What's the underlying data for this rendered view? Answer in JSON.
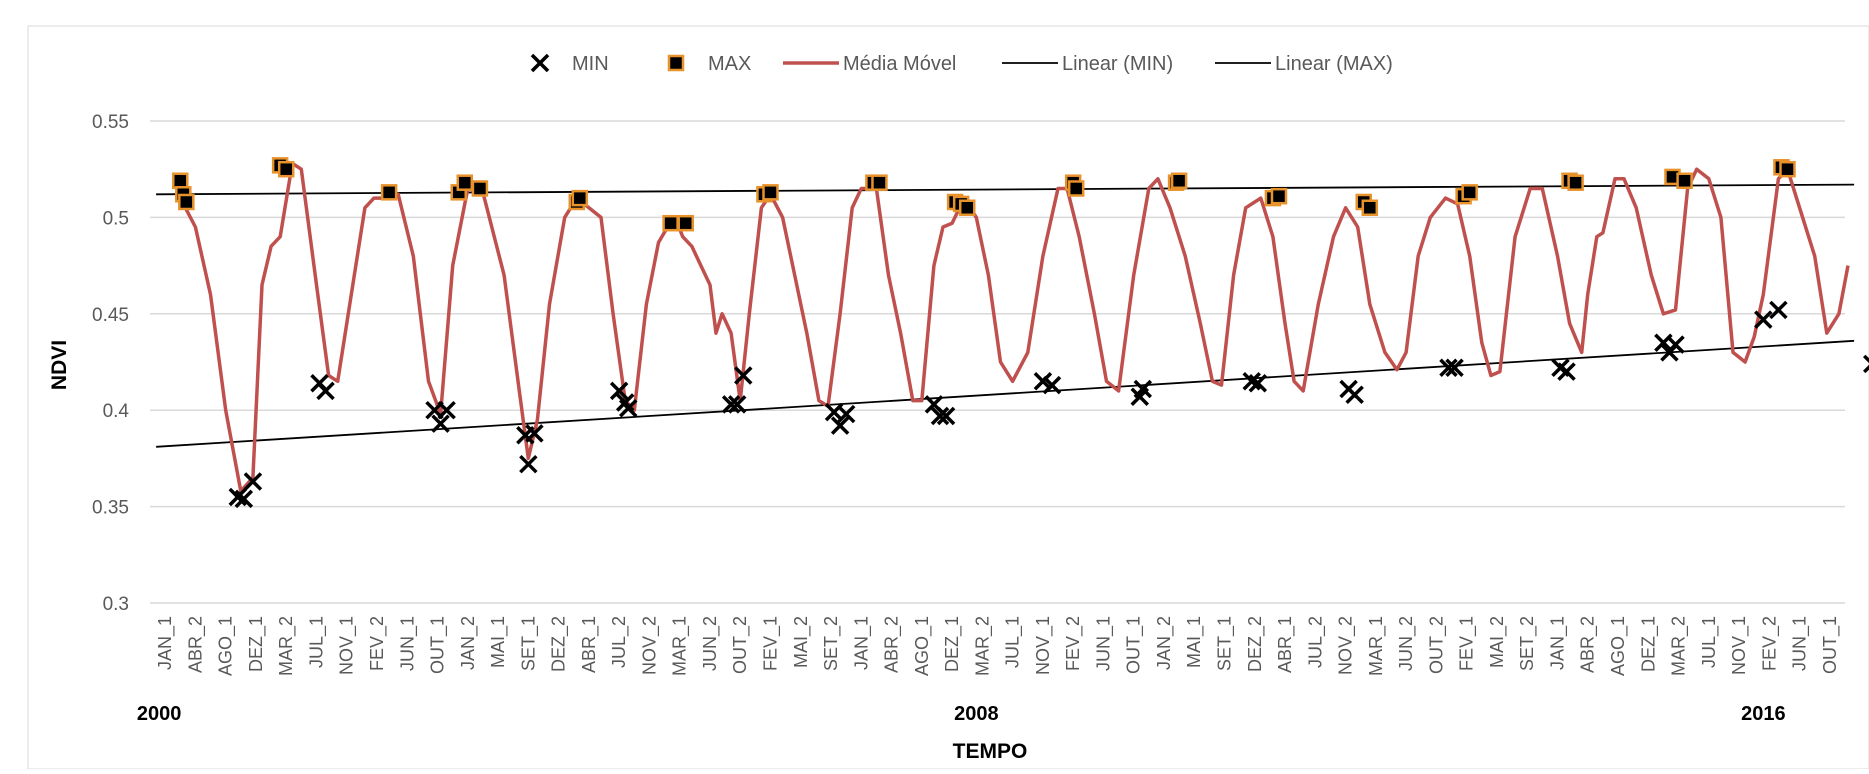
{
  "chart_data": {
    "type": "line",
    "title": "",
    "xlabel": "TEMPO",
    "ylabel": "NDVI",
    "ylim": [
      0.3,
      0.55
    ],
    "yticks": [
      "0.3",
      "0.35",
      "0.4",
      "0.45",
      "0.5",
      "0.55"
    ],
    "grid": true,
    "legend_placement": "top-center",
    "categories": [
      "JAN_1",
      "ABR_2",
      "AGO_1",
      "DEZ_1",
      "MAR_2",
      "JUL_1",
      "NOV_1",
      "FEV_2",
      "JUN_1",
      "OUT_1",
      "JAN_2",
      "MAI_1",
      "SET_1",
      "DEZ_2",
      "ABR_1",
      "JUL_2",
      "NOV_2",
      "MAR_1",
      "JUN_2",
      "OUT_2",
      "FEV_1",
      "MAI_2",
      "SET_2",
      "JAN_1",
      "ABR_2",
      "AGO_1",
      "DEZ_1",
      "MAR_2",
      "JUL_1",
      "NOV_1",
      "FEV_2",
      "JUN_1",
      "OUT_1",
      "JAN_2",
      "MAI_1",
      "SET_1",
      "DEZ_2",
      "ABR_1",
      "JUL_2",
      "NOV_2",
      "MAR_1",
      "JUN_2",
      "OUT_2",
      "FEV_1",
      "MAI_2",
      "SET_2",
      "JAN_1",
      "ABR_2",
      "AGO_1",
      "DEZ_1",
      "MAR_2",
      "JUL_1",
      "NOV_1",
      "FEV_2",
      "JUN_1",
      "OUT_1"
    ],
    "year_labels": [
      {
        "text": "2000",
        "category_index": 0
      },
      {
        "text": "2008",
        "category_index": 27
      },
      {
        "text": "2016",
        "category_index": 53
      }
    ],
    "series": [
      {
        "name": "MIN",
        "kind": "marker-x",
        "color": "#000000",
        "points": [
          [
            2.4,
            0.355
          ],
          [
            2.6,
            0.354
          ],
          [
            2.9,
            0.363
          ],
          [
            5.1,
            0.414
          ],
          [
            5.3,
            0.41
          ],
          [
            8.9,
            0.4
          ],
          [
            9.1,
            0.393
          ],
          [
            9.3,
            0.4
          ],
          [
            11.9,
            0.387
          ],
          [
            12.0,
            0.372
          ],
          [
            12.2,
            0.388
          ],
          [
            15.0,
            0.41
          ],
          [
            15.2,
            0.404
          ],
          [
            15.3,
            0.401
          ],
          [
            18.7,
            0.403
          ],
          [
            18.9,
            0.403
          ],
          [
            19.1,
            0.418
          ],
          [
            22.1,
            0.399
          ],
          [
            22.3,
            0.392
          ],
          [
            22.5,
            0.398
          ],
          [
            25.4,
            0.403
          ],
          [
            25.6,
            0.397
          ],
          [
            25.8,
            0.397
          ],
          [
            29.0,
            0.415
          ],
          [
            29.3,
            0.413
          ],
          [
            32.2,
            0.407
          ],
          [
            32.3,
            0.411
          ],
          [
            35.9,
            0.415
          ],
          [
            36.1,
            0.414
          ],
          [
            39.1,
            0.411
          ],
          [
            39.3,
            0.408
          ],
          [
            42.4,
            0.422
          ],
          [
            42.6,
            0.422
          ],
          [
            46.1,
            0.422
          ],
          [
            46.3,
            0.42
          ],
          [
            49.5,
            0.435
          ],
          [
            49.7,
            0.43
          ],
          [
            49.9,
            0.434
          ],
          [
            52.8,
            0.447
          ],
          [
            53.3,
            0.452
          ],
          [
            56.4,
            0.424
          ],
          [
            56.6,
            0.42
          ]
        ]
      },
      {
        "name": "MAX",
        "kind": "marker-square",
        "color": "#000000",
        "edge": "#e8922c",
        "points": [
          [
            0.5,
            0.519
          ],
          [
            0.6,
            0.512
          ],
          [
            0.7,
            0.508
          ],
          [
            3.8,
            0.527
          ],
          [
            4.0,
            0.525
          ],
          [
            7.4,
            0.513
          ],
          [
            9.7,
            0.513
          ],
          [
            9.9,
            0.518
          ],
          [
            10.4,
            0.515
          ],
          [
            13.6,
            0.508
          ],
          [
            13.7,
            0.51
          ],
          [
            16.7,
            0.497
          ],
          [
            17.2,
            0.497
          ],
          [
            19.8,
            0.512
          ],
          [
            20.0,
            0.513
          ],
          [
            23.4,
            0.518
          ],
          [
            23.6,
            0.518
          ],
          [
            26.1,
            0.508
          ],
          [
            26.3,
            0.507
          ],
          [
            26.5,
            0.505
          ],
          [
            30.0,
            0.518
          ],
          [
            30.1,
            0.515
          ],
          [
            33.4,
            0.518
          ],
          [
            33.5,
            0.519
          ],
          [
            36.6,
            0.51
          ],
          [
            36.8,
            0.511
          ],
          [
            39.6,
            0.508
          ],
          [
            39.8,
            0.505
          ],
          [
            42.9,
            0.511
          ],
          [
            43.1,
            0.513
          ],
          [
            46.4,
            0.519
          ],
          [
            46.6,
            0.518
          ],
          [
            49.8,
            0.521
          ],
          [
            50.2,
            0.519
          ],
          [
            53.4,
            0.526
          ],
          [
            53.6,
            0.525
          ]
        ]
      },
      {
        "name": "Média Móvel",
        "kind": "line",
        "color": "#c0504d",
        "points": [
          [
            0.5,
            0.51
          ],
          [
            1.0,
            0.495
          ],
          [
            1.5,
            0.46
          ],
          [
            2.0,
            0.4
          ],
          [
            2.5,
            0.358
          ],
          [
            2.9,
            0.365
          ],
          [
            3.2,
            0.465
          ],
          [
            3.5,
            0.485
          ],
          [
            3.8,
            0.49
          ],
          [
            4.2,
            0.528
          ],
          [
            4.5,
            0.525
          ],
          [
            5.0,
            0.465
          ],
          [
            5.4,
            0.418
          ],
          [
            5.7,
            0.415
          ],
          [
            6.2,
            0.465
          ],
          [
            6.6,
            0.505
          ],
          [
            6.9,
            0.51
          ],
          [
            7.3,
            0.51
          ],
          [
            7.7,
            0.512
          ],
          [
            8.2,
            0.48
          ],
          [
            8.7,
            0.415
          ],
          [
            9.1,
            0.398
          ],
          [
            9.5,
            0.475
          ],
          [
            10.0,
            0.515
          ],
          [
            10.5,
            0.513
          ],
          [
            11.2,
            0.47
          ],
          [
            11.7,
            0.41
          ],
          [
            12.0,
            0.375
          ],
          [
            12.3,
            0.395
          ],
          [
            12.7,
            0.455
          ],
          [
            13.2,
            0.5
          ],
          [
            13.6,
            0.51
          ],
          [
            14.0,
            0.505
          ],
          [
            14.4,
            0.5
          ],
          [
            14.8,
            0.45
          ],
          [
            15.2,
            0.405
          ],
          [
            15.5,
            0.4
          ],
          [
            15.9,
            0.455
          ],
          [
            16.3,
            0.487
          ],
          [
            16.6,
            0.495
          ],
          [
            16.9,
            0.498
          ],
          [
            17.1,
            0.49
          ],
          [
            17.4,
            0.485
          ],
          [
            17.7,
            0.475
          ],
          [
            18.0,
            0.465
          ],
          [
            18.2,
            0.44
          ],
          [
            18.4,
            0.45
          ],
          [
            18.7,
            0.44
          ],
          [
            19.0,
            0.405
          ],
          [
            19.3,
            0.45
          ],
          [
            19.7,
            0.505
          ],
          [
            20.0,
            0.512
          ],
          [
            20.4,
            0.5
          ],
          [
            20.8,
            0.47
          ],
          [
            21.2,
            0.44
          ],
          [
            21.6,
            0.405
          ],
          [
            21.9,
            0.402
          ],
          [
            22.3,
            0.45
          ],
          [
            22.7,
            0.505
          ],
          [
            23.0,
            0.515
          ],
          [
            23.5,
            0.515
          ],
          [
            23.9,
            0.47
          ],
          [
            24.3,
            0.44
          ],
          [
            24.7,
            0.405
          ],
          [
            25.0,
            0.405
          ],
          [
            25.4,
            0.475
          ],
          [
            25.7,
            0.495
          ],
          [
            26.0,
            0.497
          ],
          [
            26.4,
            0.51
          ],
          [
            26.8,
            0.5
          ],
          [
            27.2,
            0.47
          ],
          [
            27.6,
            0.425
          ],
          [
            28.0,
            0.415
          ],
          [
            28.5,
            0.43
          ],
          [
            29.0,
            0.48
          ],
          [
            29.5,
            0.515
          ],
          [
            29.8,
            0.515
          ],
          [
            30.2,
            0.49
          ],
          [
            30.7,
            0.45
          ],
          [
            31.1,
            0.415
          ],
          [
            31.5,
            0.41
          ],
          [
            32.0,
            0.47
          ],
          [
            32.5,
            0.515
          ],
          [
            32.8,
            0.52
          ],
          [
            33.2,
            0.505
          ],
          [
            33.7,
            0.48
          ],
          [
            34.2,
            0.445
          ],
          [
            34.6,
            0.415
          ],
          [
            34.9,
            0.413
          ],
          [
            35.3,
            0.47
          ],
          [
            35.7,
            0.505
          ],
          [
            36.2,
            0.51
          ],
          [
            36.6,
            0.49
          ],
          [
            37.0,
            0.445
          ],
          [
            37.3,
            0.415
          ],
          [
            37.6,
            0.41
          ],
          [
            38.1,
            0.455
          ],
          [
            38.6,
            0.49
          ],
          [
            39.0,
            0.505
          ],
          [
            39.4,
            0.495
          ],
          [
            39.8,
            0.455
          ],
          [
            40.3,
            0.43
          ],
          [
            40.7,
            0.421
          ],
          [
            41.0,
            0.43
          ],
          [
            41.4,
            0.48
          ],
          [
            41.8,
            0.5
          ],
          [
            42.3,
            0.51
          ],
          [
            42.7,
            0.507
          ],
          [
            43.1,
            0.48
          ],
          [
            43.5,
            0.435
          ],
          [
            43.8,
            0.418
          ],
          [
            44.1,
            0.42
          ],
          [
            44.6,
            0.49
          ],
          [
            45.1,
            0.515
          ],
          [
            45.5,
            0.515
          ],
          [
            46.0,
            0.48
          ],
          [
            46.4,
            0.445
          ],
          [
            46.8,
            0.43
          ],
          [
            47.0,
            0.46
          ],
          [
            47.3,
            0.49
          ],
          [
            47.5,
            0.492
          ],
          [
            47.9,
            0.52
          ],
          [
            48.2,
            0.52
          ],
          [
            48.6,
            0.505
          ],
          [
            49.1,
            0.47
          ],
          [
            49.5,
            0.45
          ],
          [
            49.9,
            0.452
          ],
          [
            50.3,
            0.515
          ],
          [
            50.6,
            0.525
          ],
          [
            51.0,
            0.52
          ],
          [
            51.4,
            0.5
          ],
          [
            51.8,
            0.43
          ],
          [
            52.2,
            0.425
          ],
          [
            52.5,
            0.438
          ],
          [
            52.8,
            0.46
          ],
          [
            53.3,
            0.52
          ],
          [
            53.6,
            0.525
          ],
          [
            54.0,
            0.505
          ],
          [
            54.5,
            0.48
          ],
          [
            54.9,
            0.44
          ],
          [
            55.3,
            0.45
          ],
          [
            55.6,
            0.475
          ]
        ]
      },
      {
        "name": "Linear (MIN)",
        "kind": "trendline",
        "color": "#000000",
        "points": [
          [
            -0.3,
            0.381
          ],
          [
            55.8,
            0.436
          ]
        ]
      },
      {
        "name": "Linear (MAX)",
        "kind": "trendline",
        "color": "#000000",
        "points": [
          [
            -0.3,
            0.512
          ],
          [
            55.8,
            0.517
          ]
        ]
      }
    ]
  }
}
